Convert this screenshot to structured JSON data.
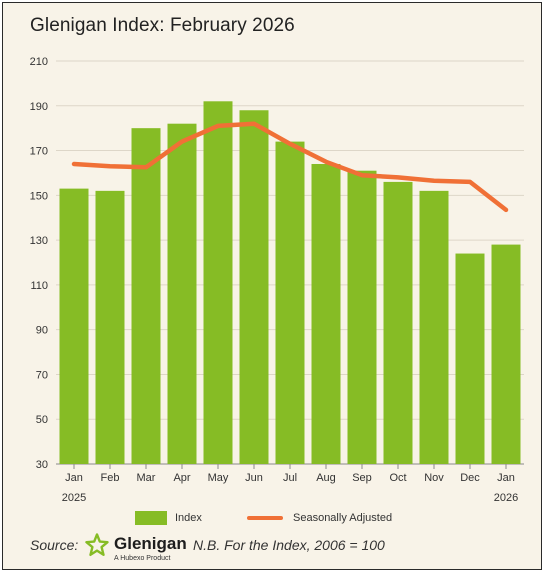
{
  "title": "Glenigan Index: February 2026",
  "chart_data": {
    "type": "bar",
    "categories": [
      "Jan",
      "Feb",
      "Mar",
      "Apr",
      "May",
      "Jun",
      "Jul",
      "Aug",
      "Sep",
      "Oct",
      "Nov",
      "Dec",
      "Jan"
    ],
    "x_sublabels": [
      "2025",
      "",
      "",
      "",
      "",
      "",
      "",
      "",
      "",
      "",
      "",
      "",
      "2026"
    ],
    "series": [
      {
        "name": "Index",
        "type": "bar",
        "color": "#86bc25",
        "values": [
          153,
          152,
          180,
          182,
          192,
          188,
          174,
          164,
          161,
          156,
          152,
          124,
          128
        ]
      },
      {
        "name": "Seasonally Adjusted",
        "type": "line",
        "color": "#f07036",
        "values": [
          164,
          163,
          162.5,
          174,
          181,
          182,
          173,
          165,
          159,
          158,
          156.5,
          156,
          143.5
        ]
      }
    ],
    "ylim": [
      30,
      210
    ],
    "yticks": [
      30,
      50,
      70,
      90,
      110,
      130,
      150,
      170,
      190,
      210
    ],
    "grid": true,
    "legend": "bottom"
  },
  "legend": {
    "index_label": "Index",
    "sa_label": "Seasonally Adjusted"
  },
  "footer": {
    "source_label": "Source:",
    "logo_name": "Glenigan",
    "logo_tagline": "A Hubexo Product",
    "note": "N.B. For the Index, 2006 = 100"
  }
}
